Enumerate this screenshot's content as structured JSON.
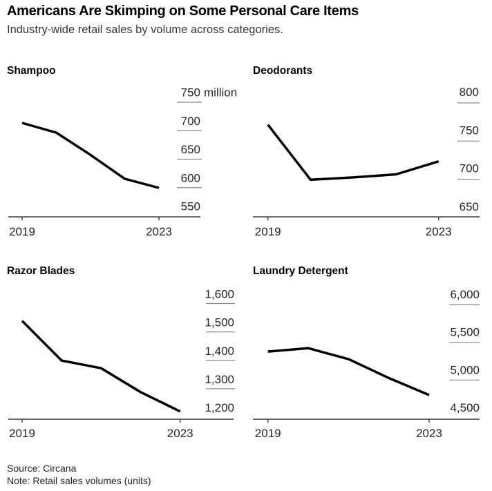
{
  "header": {
    "title": "Americans Are Skimping on Some Personal Care Items",
    "subtitle": "Industry-wide retail sales by volume across categories."
  },
  "footer": {
    "source": "Source: Circana",
    "note": "Note: Retail sales volumes (units)"
  },
  "colors": {
    "line": "#000000",
    "axis": "#3d3d3d",
    "label_rule": "#8a8a8a",
    "tick_text": "#262626"
  },
  "chart_data": [
    {
      "type": "line",
      "title": "Shampoo",
      "x": [
        2019,
        2020,
        2021,
        2022,
        2023
      ],
      "values": [
        696,
        679,
        640,
        598,
        582
      ],
      "x_tick_labels": [
        "2019",
        "2023"
      ],
      "y_ticks": [
        750,
        700,
        650,
        600,
        550
      ],
      "y_tick_labels": [
        "750",
        "700",
        "650",
        "600",
        "550"
      ],
      "unit_label": "million",
      "ylim": [
        550,
        750
      ],
      "xlim": [
        2019,
        2023
      ],
      "yaxis_side": "right",
      "grid": false,
      "legend": false
    },
    {
      "type": "line",
      "title": "Deodorants",
      "x": [
        2019,
        2020,
        2021,
        2022,
        2023
      ],
      "values": [
        757,
        685,
        688,
        692,
        709
      ],
      "x_tick_labels": [
        "2019",
        "2023"
      ],
      "y_ticks": [
        800,
        750,
        700,
        650
      ],
      "y_tick_labels": [
        "800",
        "750",
        "700",
        "650"
      ],
      "unit_label": "",
      "ylim": [
        650,
        800
      ],
      "xlim": [
        2019,
        2023
      ],
      "yaxis_side": "right",
      "grid": false,
      "legend": false
    },
    {
      "type": "line",
      "title": "Razor Blades",
      "x": [
        2019,
        2020,
        2021,
        2022,
        2023
      ],
      "values": [
        1505,
        1365,
        1338,
        1254,
        1186
      ],
      "x_tick_labels": [
        "2019",
        "2023"
      ],
      "y_ticks": [
        1600,
        1500,
        1400,
        1300,
        1200
      ],
      "y_tick_labels": [
        "1,600",
        "1,500",
        "1,400",
        "1,300",
        "1,200"
      ],
      "unit_label": "",
      "ylim": [
        1200,
        1600
      ],
      "xlim": [
        2019,
        2023
      ],
      "yaxis_side": "right",
      "grid": false,
      "legend": false
    },
    {
      "type": "line",
      "title": "Laundry Detergent",
      "x": [
        2019,
        2020,
        2021,
        2022,
        2023
      ],
      "values": [
        5240,
        5285,
        5140,
        4890,
        4665
      ],
      "x_tick_labels": [
        "2019",
        "2023"
      ],
      "y_ticks": [
        6000,
        5500,
        5000,
        4500
      ],
      "y_tick_labels": [
        "6,000",
        "5,500",
        "5,000",
        "4,500"
      ],
      "unit_label": "",
      "ylim": [
        4500,
        6000
      ],
      "xlim": [
        2019,
        2023
      ],
      "yaxis_side": "right",
      "grid": false,
      "legend": false
    }
  ]
}
